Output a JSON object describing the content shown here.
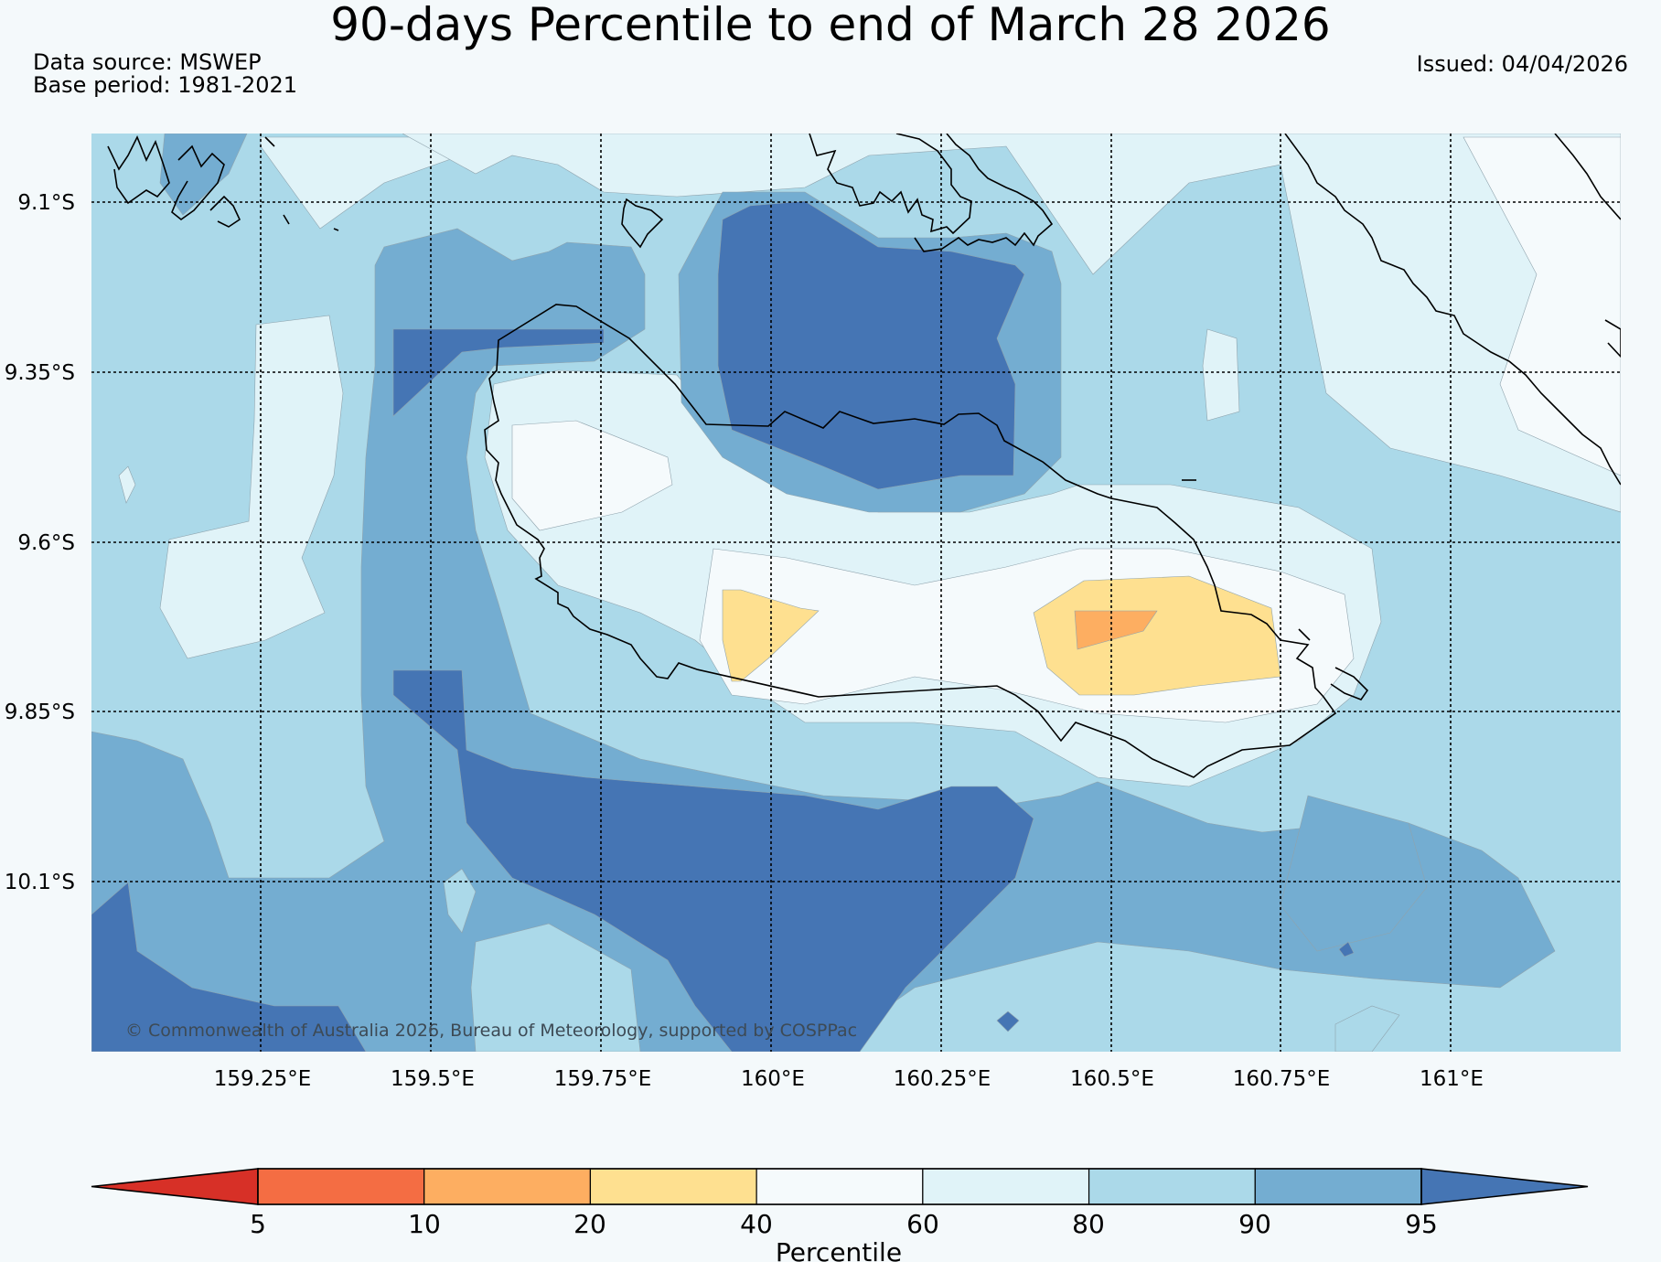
{
  "header": {
    "title": "90-days Percentile to end of March 28 2026",
    "data_source": "Data source: MSWEP",
    "base_period": "Base period: 1981-2021",
    "issued": "Issued: 04/04/2026"
  },
  "map": {
    "latitude_labels": [
      "9.1°S",
      "9.35°S",
      "9.6°S",
      "9.85°S",
      "10.1°S"
    ],
    "longitude_labels": [
      "159.25°E",
      "159.5°E",
      "159.75°E",
      "160°E",
      "160.25°E",
      "160.5°E",
      "160.75°E",
      "161°E"
    ],
    "credit": "© Commonwealth of Australia 2026, Bureau of Meteorology, supported by COSPPac"
  },
  "colorbar": {
    "ticks": [
      "5",
      "10",
      "20",
      "40",
      "60",
      "80",
      "90",
      "95"
    ],
    "label": "Percentile",
    "colors": [
      "#d73027",
      "#f46d43",
      "#fdae61",
      "#fee090",
      "#f5fafc",
      "#e0f3f8",
      "#abd9e9",
      "#74add1",
      "#4575b4"
    ]
  }
}
